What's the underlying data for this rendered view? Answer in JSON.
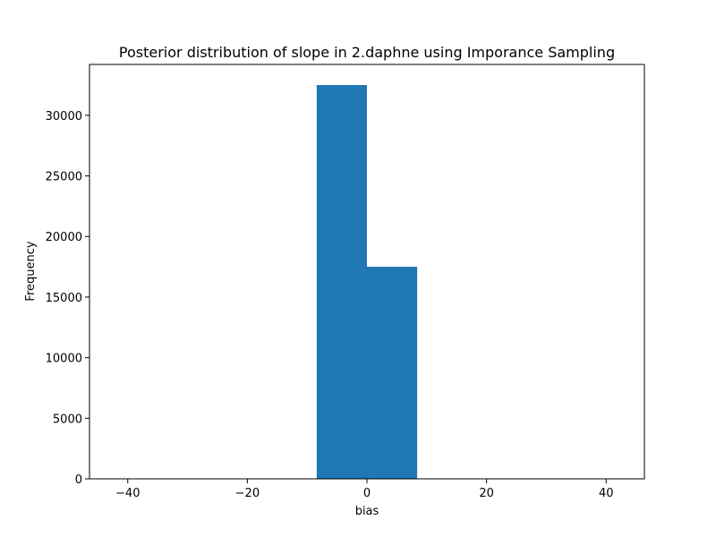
{
  "chart_data": {
    "type": "bar",
    "title": "Posterior distribution of slope in 2.daphne using Imporance Sampling",
    "xlabel": "bias",
    "ylabel": "Frequency",
    "xlim": [
      -46.4,
      46.4
    ],
    "ylim": [
      0,
      34200
    ],
    "grid": false,
    "legend": "none",
    "color": "#1f77b4",
    "x_ticks": [
      -40,
      -20,
      0,
      20,
      40
    ],
    "x_tick_labels": [
      "−40",
      "−20",
      "0",
      "20",
      "40"
    ],
    "y_ticks": [
      0,
      5000,
      10000,
      15000,
      20000,
      25000,
      30000
    ],
    "y_tick_labels": [
      "0",
      "5000",
      "10000",
      "15000",
      "20000",
      "25000",
      "30000"
    ],
    "bins": [
      {
        "start": -42.2,
        "end": -33.8,
        "count": 0
      },
      {
        "start": -33.8,
        "end": -25.3,
        "count": 0
      },
      {
        "start": -25.3,
        "end": -16.9,
        "count": 0
      },
      {
        "start": -16.9,
        "end": -8.4,
        "count": 0
      },
      {
        "start": -8.4,
        "end": 0.0,
        "count": 32500
      },
      {
        "start": 0.0,
        "end": 8.4,
        "count": 17500
      },
      {
        "start": 8.4,
        "end": 16.9,
        "count": 0
      },
      {
        "start": 16.9,
        "end": 25.3,
        "count": 0
      },
      {
        "start": 25.3,
        "end": 33.8,
        "count": 0
      },
      {
        "start": 33.8,
        "end": 42.2,
        "count": 0
      }
    ]
  }
}
